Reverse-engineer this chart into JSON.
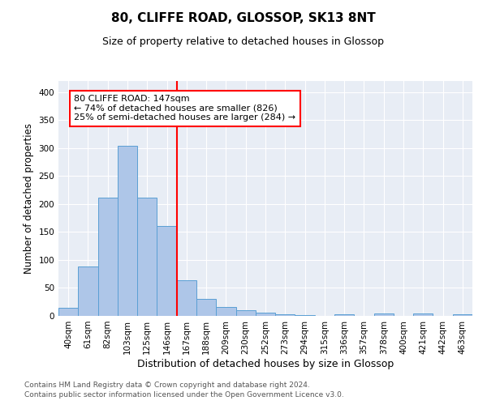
{
  "title": "80, CLIFFE ROAD, GLOSSOP, SK13 8NT",
  "subtitle": "Size of property relative to detached houses in Glossop",
  "xlabel": "Distribution of detached houses by size in Glossop",
  "ylabel": "Number of detached properties",
  "bin_labels": [
    "40sqm",
    "61sqm",
    "82sqm",
    "103sqm",
    "125sqm",
    "146sqm",
    "167sqm",
    "188sqm",
    "209sqm",
    "230sqm",
    "252sqm",
    "273sqm",
    "294sqm",
    "315sqm",
    "336sqm",
    "357sqm",
    "378sqm",
    "400sqm",
    "421sqm",
    "442sqm",
    "463sqm"
  ],
  "bar_heights": [
    15,
    88,
    211,
    304,
    212,
    161,
    64,
    30,
    16,
    10,
    6,
    3,
    2,
    0,
    3,
    0,
    4,
    0,
    4,
    0,
    3
  ],
  "bar_color": "#aec6e8",
  "bar_edge_color": "#5a9fd4",
  "vline_x": 5.5,
  "vline_color": "red",
  "annotation_text": "80 CLIFFE ROAD: 147sqm\n← 74% of detached houses are smaller (826)\n25% of semi-detached houses are larger (284) →",
  "annotation_box_color": "red",
  "annotation_text_color": "black",
  "ylim": [
    0,
    420
  ],
  "yticks": [
    0,
    50,
    100,
    150,
    200,
    250,
    300,
    350,
    400
  ],
  "plot_bg_color": "#e8edf5",
  "footer_line1": "Contains HM Land Registry data © Crown copyright and database right 2024.",
  "footer_line2": "Contains public sector information licensed under the Open Government Licence v3.0.",
  "title_fontsize": 11,
  "subtitle_fontsize": 9,
  "xlabel_fontsize": 9,
  "ylabel_fontsize": 8.5,
  "tick_fontsize": 7.5,
  "footer_fontsize": 6.5,
  "annot_fontsize": 8
}
